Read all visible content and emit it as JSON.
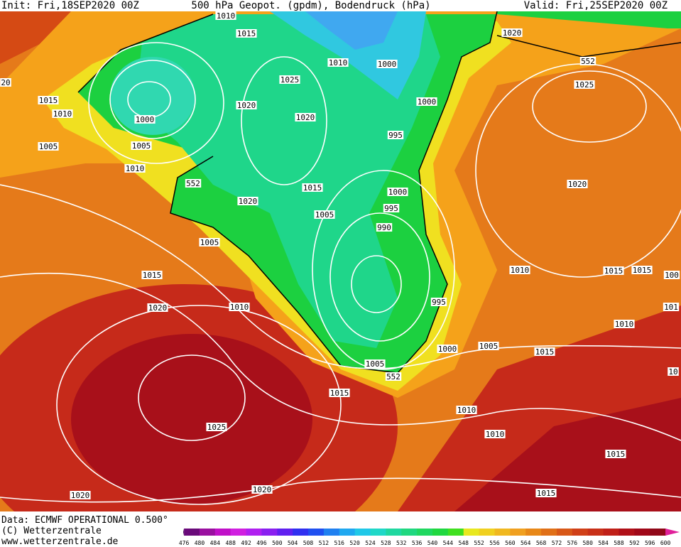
{
  "header": {
    "init": "Init: Fri,18SEP2020 00Z",
    "title": "500 hPa Geopot. (gpdm), Bodendruck (hPa)",
    "valid": "Valid: Fri,25SEP2020 00Z"
  },
  "isobar_labels": [
    "1010",
    "1015",
    "1020",
    "552",
    "1010",
    "1000",
    "20",
    "1025",
    "1025",
    "1015",
    "1010",
    "1020",
    "1020",
    "1000",
    "1000",
    "995",
    "1005",
    "1005",
    "1010",
    "552",
    "1015",
    "1000",
    "1020",
    "1020",
    "995",
    "1005",
    "990",
    "1005",
    "1010",
    "1015",
    "1015",
    "100",
    "1015",
    "995",
    "1020",
    "1010",
    "101",
    "1010",
    "1000",
    "1005",
    "1015",
    "1005",
    "552",
    "10",
    "1015",
    "1010",
    "1025",
    "1010",
    "1015",
    "1020",
    "1020",
    "1015"
  ],
  "footer": {
    "data": "Data: ECMWF OPERATIONAL 0.500°",
    "copyright": "(C) Wetterzentrale",
    "url": "www.wetterzentrale.de"
  },
  "colorbar": {
    "labels": [
      476,
      480,
      484,
      488,
      492,
      496,
      500,
      504,
      508,
      512,
      516,
      520,
      524,
      528,
      532,
      536,
      540,
      544,
      548,
      552,
      556,
      560,
      564,
      568,
      572,
      576,
      580,
      584,
      588,
      592,
      596,
      600
    ]
  }
}
